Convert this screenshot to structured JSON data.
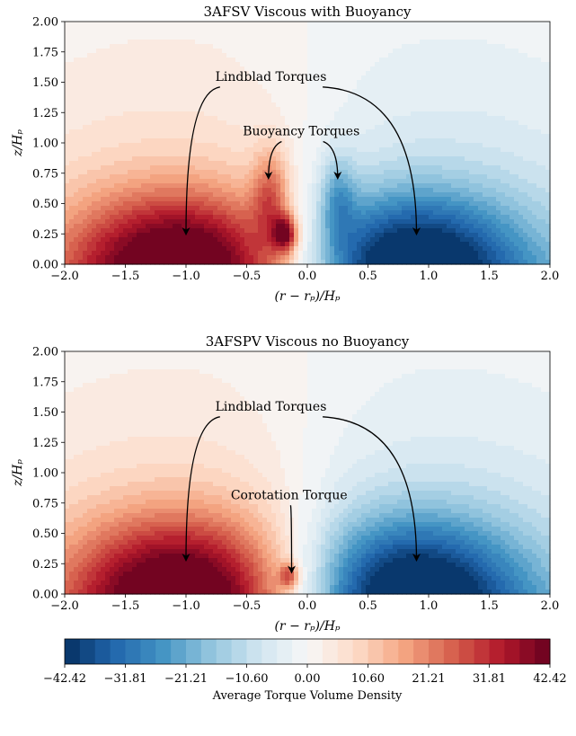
{
  "figure": {
    "colorbar": {
      "label": "Average Torque Volume Density",
      "ticks": [
        "−42.42",
        "−31.81",
        "−21.21",
        "−10.60",
        "0.00",
        "10.60",
        "21.21",
        "31.81",
        "42.42"
      ],
      "tick_values": [
        -42.42,
        -31.81,
        -21.21,
        -10.6,
        0.0,
        10.6,
        21.21,
        31.81,
        42.42
      ],
      "n_levels": 32,
      "colormap": "RdBu_r",
      "min_color": "#053061",
      "zero_color": "#f7f7f7",
      "max_color": "#67001f"
    }
  },
  "chart_data": [
    {
      "type": "heatmap",
      "title": "3AFSV Viscous with Buoyancy",
      "xlabel": "(r − rₚ)/Hₚ",
      "ylabel": "z/Hₚ",
      "xlim": [
        -2.0,
        2.0
      ],
      "ylim": [
        0.0,
        2.0
      ],
      "xticks": [
        "−2.0",
        "−1.5",
        "−1.0",
        "−0.5",
        "0.0",
        "0.5",
        "1.0",
        "1.5",
        "2.0"
      ],
      "xtick_values": [
        -2.0,
        -1.5,
        -1.0,
        -0.5,
        0.0,
        0.5,
        1.0,
        1.5,
        2.0
      ],
      "yticks": [
        "0.00",
        "0.25",
        "0.50",
        "0.75",
        "1.00",
        "1.25",
        "1.50",
        "1.75",
        "2.00"
      ],
      "ytick_values": [
        0.0,
        0.25,
        0.5,
        0.75,
        1.0,
        1.25,
        1.5,
        1.75,
        2.0
      ],
      "grid": false,
      "features": [
        {
          "x": -1.05,
          "z": 0.05,
          "value": 42.42,
          "sx": 0.85,
          "sz": 0.55
        },
        {
          "x": 0.85,
          "z": 0.05,
          "value": -42.42,
          "sx": 0.85,
          "sz": 0.55
        },
        {
          "x": -0.18,
          "z": 0.25,
          "value": 42.42,
          "sx": 0.1,
          "sz": 0.15
        },
        {
          "x": -0.3,
          "z": 0.55,
          "value": 25.0,
          "sx": 0.15,
          "sz": 0.4
        },
        {
          "x": 0.25,
          "z": 0.55,
          "value": -20.0,
          "sx": 0.15,
          "sz": 0.35
        }
      ],
      "annotations": [
        {
          "text": "Lindblad Torques",
          "x": -0.3,
          "y": 1.55,
          "arrows": [
            {
              "x": -1.0,
              "y": 0.25
            },
            {
              "x": 0.9,
              "y": 0.25
            }
          ]
        },
        {
          "text": "Buoyancy Torques",
          "x": -0.05,
          "y": 1.1,
          "arrows": [
            {
              "x": -0.32,
              "y": 0.71
            },
            {
              "x": 0.25,
              "y": 0.71
            }
          ]
        }
      ]
    },
    {
      "type": "heatmap",
      "title": "3AFSPV Viscous no Buoyancy",
      "xlabel": "(r − rₚ)/Hₚ",
      "ylabel": "z/Hₚ",
      "xlim": [
        -2.0,
        2.0
      ],
      "ylim": [
        0.0,
        2.0
      ],
      "xticks": [
        "−2.0",
        "−1.5",
        "−1.0",
        "−0.5",
        "0.0",
        "0.5",
        "1.0",
        "1.5",
        "2.0"
      ],
      "xtick_values": [
        -2.0,
        -1.5,
        -1.0,
        -0.5,
        0.0,
        0.5,
        1.0,
        1.5,
        2.0
      ],
      "yticks": [
        "0.00",
        "0.25",
        "0.50",
        "0.75",
        "1.00",
        "1.25",
        "1.50",
        "1.75",
        "2.00"
      ],
      "ytick_values": [
        0.0,
        0.25,
        0.5,
        0.75,
        1.0,
        1.25,
        1.5,
        1.75,
        2.0
      ],
      "grid": false,
      "features": [
        {
          "x": -1.05,
          "z": 0.05,
          "value": 42.42,
          "sx": 0.85,
          "sz": 0.6
        },
        {
          "x": 0.85,
          "z": 0.05,
          "value": -42.42,
          "sx": 0.85,
          "sz": 0.6
        },
        {
          "x": -0.15,
          "z": 0.15,
          "value": 30.0,
          "sx": 0.08,
          "sz": 0.1
        }
      ],
      "annotations": [
        {
          "text": "Lindblad Torques",
          "x": -0.3,
          "y": 1.55,
          "arrows": [
            {
              "x": -1.0,
              "y": 0.28
            },
            {
              "x": 0.9,
              "y": 0.28
            }
          ]
        },
        {
          "text": "Corotation Torque",
          "x": -0.15,
          "y": 0.82,
          "arrows": [
            {
              "x": -0.13,
              "y": 0.18
            }
          ]
        }
      ]
    }
  ]
}
